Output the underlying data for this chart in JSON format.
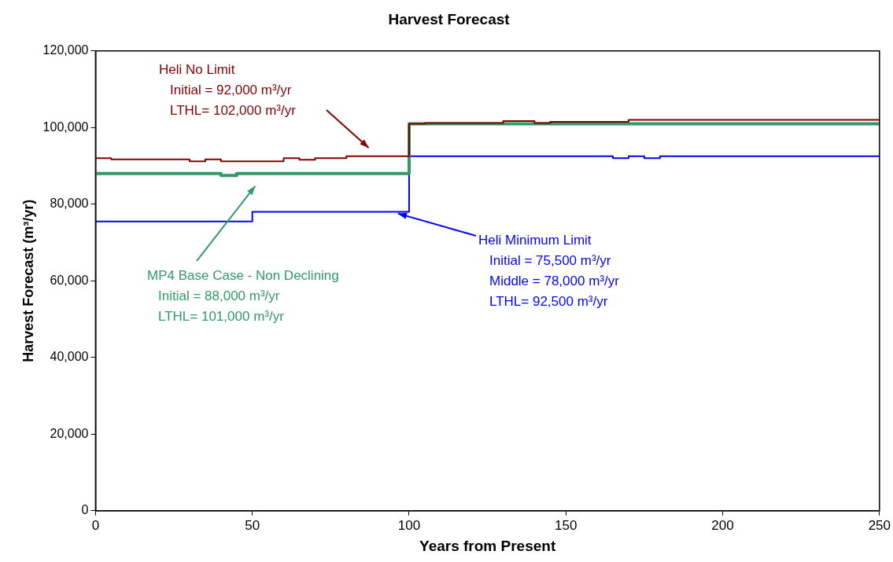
{
  "chart_data": {
    "type": "step",
    "title": "Harvest Forecast",
    "xlabel": "Years from Present",
    "ylabel": "Harvest Forecast (m³/yr)",
    "xlim": [
      0,
      250
    ],
    "xticks": [
      0,
      50,
      100,
      150,
      200,
      250
    ],
    "ylim": [
      0,
      120000
    ],
    "yticks": [
      0,
      {
        "value": 20000,
        "label": "20,000"
      },
      {
        "value": 40000,
        "label": "40,000"
      },
      {
        "value": 60000,
        "label": "60,000"
      },
      {
        "value": 80000,
        "label": "80,000"
      },
      {
        "value": 100000,
        "label": "100,000"
      },
      {
        "value": 120000,
        "label": "120,000"
      }
    ],
    "grid": false,
    "legend": false,
    "marker": "none",
    "line_style": "solid",
    "series": [
      {
        "name": "Heli No Limit",
        "color": "#800000",
        "x": [
          0,
          5,
          30,
          35,
          40,
          60,
          65,
          70,
          80,
          100,
          105,
          130,
          140,
          145,
          170,
          250
        ],
        "values": [
          92000,
          91700,
          91200,
          91700,
          91200,
          92000,
          91600,
          92000,
          92500,
          101000,
          101200,
          101700,
          101200,
          101500,
          102000,
          102000
        ]
      },
      {
        "name": "MP4 Base Case - Non Declining",
        "color": "#339966",
        "x": [
          0,
          40,
          45,
          100,
          250
        ],
        "values": [
          88000,
          87500,
          88000,
          101000,
          101000
        ]
      },
      {
        "name": "Heli Minimum Limit",
        "color": "#0000ff",
        "x": [
          0,
          50,
          100,
          165,
          170,
          175,
          180,
          250
        ],
        "values": [
          75500,
          78000,
          92500,
          92000,
          92500,
          92000,
          92500,
          92500
        ]
      }
    ],
    "annotations": [
      "Initial = 92,000 m³/yr\nLTHL= 102,000 m³/yr",
      "Initial = 88,000 m³/yr\nLTHL= 101,000 m³/yr",
      "Initial = 75,500 m³/yr\nMiddle = 78,000 m³/yr\nLTHL= 92,500 m³/yr"
    ]
  }
}
